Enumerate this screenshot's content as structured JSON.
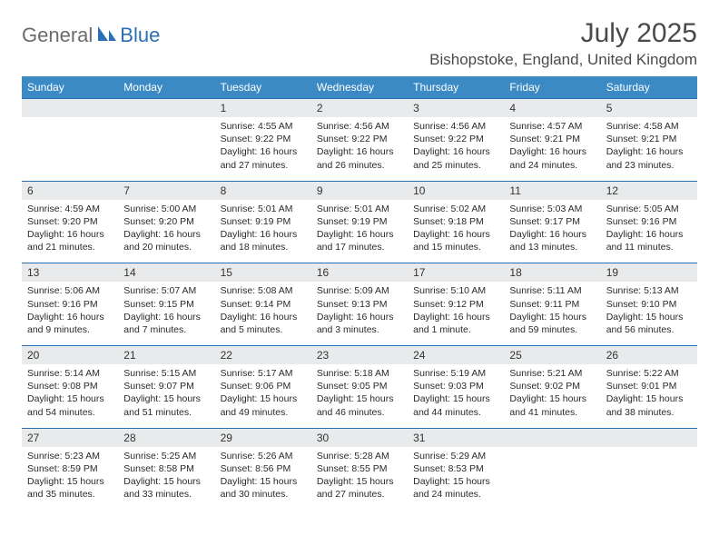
{
  "logo": {
    "general": "General",
    "blue": "Blue"
  },
  "header": {
    "title": "July 2025",
    "location": "Bishopstoke, England, United Kingdom"
  },
  "colors": {
    "header_bar": "#3b8ac4",
    "header_text": "#ffffff",
    "daynum_bg": "#e9eaeb",
    "row_border": "#2b6fb5",
    "text": "#2a2a2a",
    "title_text": "#4a4a4a",
    "logo_gray": "#6b6b6b",
    "logo_blue": "#2b6fb5"
  },
  "typography": {
    "title_fontsize": 30,
    "location_fontsize": 17,
    "dayheader_fontsize": 12,
    "daynum_fontsize": 12,
    "cell_fontsize": 10.5
  },
  "dayNames": [
    "Sunday",
    "Monday",
    "Tuesday",
    "Wednesday",
    "Thursday",
    "Friday",
    "Saturday"
  ],
  "weeks": [
    {
      "nums": [
        "",
        "",
        "1",
        "2",
        "3",
        "4",
        "5"
      ],
      "cells": [
        {
          "sunrise": "",
          "sunset": "",
          "daylight": ""
        },
        {
          "sunrise": "",
          "sunset": "",
          "daylight": ""
        },
        {
          "sunrise": "Sunrise: 4:55 AM",
          "sunset": "Sunset: 9:22 PM",
          "daylight": "Daylight: 16 hours and 27 minutes."
        },
        {
          "sunrise": "Sunrise: 4:56 AM",
          "sunset": "Sunset: 9:22 PM",
          "daylight": "Daylight: 16 hours and 26 minutes."
        },
        {
          "sunrise": "Sunrise: 4:56 AM",
          "sunset": "Sunset: 9:22 PM",
          "daylight": "Daylight: 16 hours and 25 minutes."
        },
        {
          "sunrise": "Sunrise: 4:57 AM",
          "sunset": "Sunset: 9:21 PM",
          "daylight": "Daylight: 16 hours and 24 minutes."
        },
        {
          "sunrise": "Sunrise: 4:58 AM",
          "sunset": "Sunset: 9:21 PM",
          "daylight": "Daylight: 16 hours and 23 minutes."
        }
      ]
    },
    {
      "nums": [
        "6",
        "7",
        "8",
        "9",
        "10",
        "11",
        "12"
      ],
      "cells": [
        {
          "sunrise": "Sunrise: 4:59 AM",
          "sunset": "Sunset: 9:20 PM",
          "daylight": "Daylight: 16 hours and 21 minutes."
        },
        {
          "sunrise": "Sunrise: 5:00 AM",
          "sunset": "Sunset: 9:20 PM",
          "daylight": "Daylight: 16 hours and 20 minutes."
        },
        {
          "sunrise": "Sunrise: 5:01 AM",
          "sunset": "Sunset: 9:19 PM",
          "daylight": "Daylight: 16 hours and 18 minutes."
        },
        {
          "sunrise": "Sunrise: 5:01 AM",
          "sunset": "Sunset: 9:19 PM",
          "daylight": "Daylight: 16 hours and 17 minutes."
        },
        {
          "sunrise": "Sunrise: 5:02 AM",
          "sunset": "Sunset: 9:18 PM",
          "daylight": "Daylight: 16 hours and 15 minutes."
        },
        {
          "sunrise": "Sunrise: 5:03 AM",
          "sunset": "Sunset: 9:17 PM",
          "daylight": "Daylight: 16 hours and 13 minutes."
        },
        {
          "sunrise": "Sunrise: 5:05 AM",
          "sunset": "Sunset: 9:16 PM",
          "daylight": "Daylight: 16 hours and 11 minutes."
        }
      ]
    },
    {
      "nums": [
        "13",
        "14",
        "15",
        "16",
        "17",
        "18",
        "19"
      ],
      "cells": [
        {
          "sunrise": "Sunrise: 5:06 AM",
          "sunset": "Sunset: 9:16 PM",
          "daylight": "Daylight: 16 hours and 9 minutes."
        },
        {
          "sunrise": "Sunrise: 5:07 AM",
          "sunset": "Sunset: 9:15 PM",
          "daylight": "Daylight: 16 hours and 7 minutes."
        },
        {
          "sunrise": "Sunrise: 5:08 AM",
          "sunset": "Sunset: 9:14 PM",
          "daylight": "Daylight: 16 hours and 5 minutes."
        },
        {
          "sunrise": "Sunrise: 5:09 AM",
          "sunset": "Sunset: 9:13 PM",
          "daylight": "Daylight: 16 hours and 3 minutes."
        },
        {
          "sunrise": "Sunrise: 5:10 AM",
          "sunset": "Sunset: 9:12 PM",
          "daylight": "Daylight: 16 hours and 1 minute."
        },
        {
          "sunrise": "Sunrise: 5:11 AM",
          "sunset": "Sunset: 9:11 PM",
          "daylight": "Daylight: 15 hours and 59 minutes."
        },
        {
          "sunrise": "Sunrise: 5:13 AM",
          "sunset": "Sunset: 9:10 PM",
          "daylight": "Daylight: 15 hours and 56 minutes."
        }
      ]
    },
    {
      "nums": [
        "20",
        "21",
        "22",
        "23",
        "24",
        "25",
        "26"
      ],
      "cells": [
        {
          "sunrise": "Sunrise: 5:14 AM",
          "sunset": "Sunset: 9:08 PM",
          "daylight": "Daylight: 15 hours and 54 minutes."
        },
        {
          "sunrise": "Sunrise: 5:15 AM",
          "sunset": "Sunset: 9:07 PM",
          "daylight": "Daylight: 15 hours and 51 minutes."
        },
        {
          "sunrise": "Sunrise: 5:17 AM",
          "sunset": "Sunset: 9:06 PM",
          "daylight": "Daylight: 15 hours and 49 minutes."
        },
        {
          "sunrise": "Sunrise: 5:18 AM",
          "sunset": "Sunset: 9:05 PM",
          "daylight": "Daylight: 15 hours and 46 minutes."
        },
        {
          "sunrise": "Sunrise: 5:19 AM",
          "sunset": "Sunset: 9:03 PM",
          "daylight": "Daylight: 15 hours and 44 minutes."
        },
        {
          "sunrise": "Sunrise: 5:21 AM",
          "sunset": "Sunset: 9:02 PM",
          "daylight": "Daylight: 15 hours and 41 minutes."
        },
        {
          "sunrise": "Sunrise: 5:22 AM",
          "sunset": "Sunset: 9:01 PM",
          "daylight": "Daylight: 15 hours and 38 minutes."
        }
      ]
    },
    {
      "nums": [
        "27",
        "28",
        "29",
        "30",
        "31",
        "",
        ""
      ],
      "cells": [
        {
          "sunrise": "Sunrise: 5:23 AM",
          "sunset": "Sunset: 8:59 PM",
          "daylight": "Daylight: 15 hours and 35 minutes."
        },
        {
          "sunrise": "Sunrise: 5:25 AM",
          "sunset": "Sunset: 8:58 PM",
          "daylight": "Daylight: 15 hours and 33 minutes."
        },
        {
          "sunrise": "Sunrise: 5:26 AM",
          "sunset": "Sunset: 8:56 PM",
          "daylight": "Daylight: 15 hours and 30 minutes."
        },
        {
          "sunrise": "Sunrise: 5:28 AM",
          "sunset": "Sunset: 8:55 PM",
          "daylight": "Daylight: 15 hours and 27 minutes."
        },
        {
          "sunrise": "Sunrise: 5:29 AM",
          "sunset": "Sunset: 8:53 PM",
          "daylight": "Daylight: 15 hours and 24 minutes."
        },
        {
          "sunrise": "",
          "sunset": "",
          "daylight": ""
        },
        {
          "sunrise": "",
          "sunset": "",
          "daylight": ""
        }
      ]
    }
  ]
}
